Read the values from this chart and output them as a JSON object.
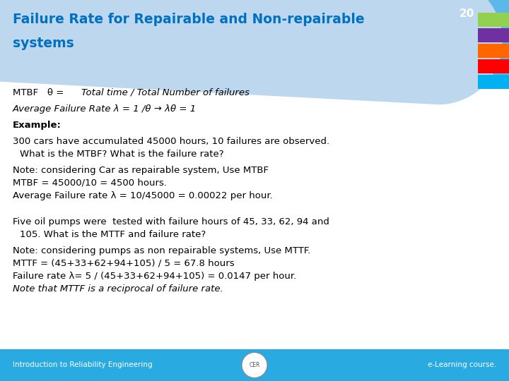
{
  "title_line1": "Failure Rate for Repairable and Non-repairable",
  "title_line2": "systems",
  "title_color": "#0070C0",
  "header_bg": "#BDD7EE",
  "header_right_bg": "#5BB8E8",
  "page_num": "20",
  "sidebar_colors": [
    "#92D050",
    "#7030A0",
    "#FF6600",
    "#FF0000",
    "#00B0F0"
  ],
  "footer_bg": "#29ABE2",
  "footer_left": "Introduction to Reliability Engineering",
  "footer_right": "e-Learning course.",
  "bg_color": "#FFFFFF",
  "text_color": "#000000",
  "font_size": 9.5,
  "title_font_size": 13.5,
  "footer_font_size": 7.5
}
